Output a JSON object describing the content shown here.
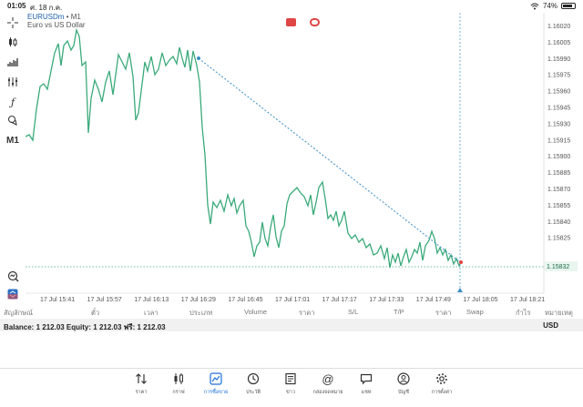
{
  "status_bar": {
    "time": "01:05",
    "date": "ศ. 18 ก.ค.",
    "battery": "74%",
    "battery_level": 0.74
  },
  "chart": {
    "symbol": "EURUSDm",
    "timeframe": "M1",
    "subtitle": "Euro vs US Dollar",
    "timeframe_button": "M1",
    "price_labels": [
      "1.16020",
      "1.16005",
      "1.15990",
      "1.15975",
      "1.15960",
      "1.15945",
      "1.15930",
      "1.15915",
      "1.15900",
      "1.15885",
      "1.15870",
      "1.15855",
      "1.15840",
      "1.15825"
    ],
    "current_price": "1.15832",
    "time_labels": [
      "17 Jul 15:41",
      "17 Jul 15:57",
      "17 Jul 16:13",
      "17 Jul 16:29",
      "17 Jul 16:45",
      "17 Jul 17:01",
      "17 Jul 17:17",
      "17 Jul 17:33",
      "17 Jul 17:49",
      "17 Jul 18:05",
      "17 Jul 18:21"
    ],
    "line_color": "#3aaa7a",
    "trendline_color": "#3b8fc4"
  },
  "table_headers": {
    "symbol": "สัญลักษณ์",
    "ticket": "ตั๋ว",
    "time": "เวลา",
    "type": "ประเภท",
    "volume": "Volume",
    "price": "ราคา",
    "sl": "S/L",
    "tp": "T/P",
    "price2": "ราคา",
    "swap": "Swap",
    "profit": "กำไร",
    "comment": "หมายเหตุ"
  },
  "balance": {
    "text": "Balance: 1 212.03 Equity: 1 212.03 ฟรี: 1 212.03",
    "currency": "USD"
  },
  "nav": [
    {
      "label": "ราคา",
      "icon": "arrows-updown-icon"
    },
    {
      "label": "กราฟ",
      "icon": "candles-icon"
    },
    {
      "label": "การซื้อขาย",
      "icon": "trade-chart-icon"
    },
    {
      "label": "ประวัติ",
      "icon": "history-clock-icon"
    },
    {
      "label": "ข่าว",
      "icon": "news-icon"
    },
    {
      "label": "กล่องจดหมาย",
      "icon": "mail-at-icon"
    },
    {
      "label": "แชท",
      "icon": "chat-icon"
    },
    {
      "label": "บัญชี",
      "icon": "account-icon"
    },
    {
      "label": "การตั้งค่า",
      "icon": "gear-icon"
    }
  ]
}
